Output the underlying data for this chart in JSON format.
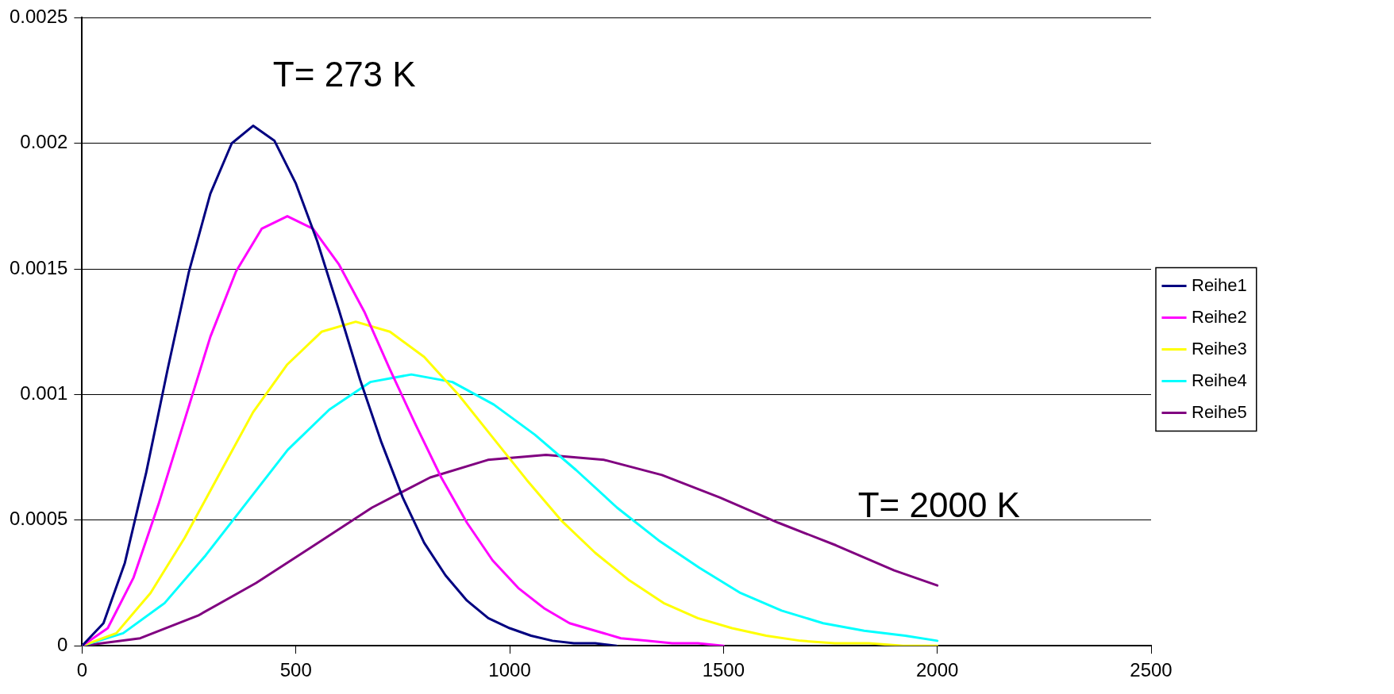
{
  "chart_data": {
    "type": "line",
    "xlim": [
      0,
      2500
    ],
    "xticks": [
      0,
      500,
      1000,
      1500,
      2000,
      2500
    ],
    "ylim": [
      0,
      0.0025
    ],
    "yticks": [
      0,
      0.0005,
      0.001,
      0.0015,
      0.002,
      0.0025
    ],
    "grid": "y",
    "legend": "right",
    "marker": "none",
    "line_style": "solid",
    "annotations": [
      "T= 273 K",
      "T= 2000 K"
    ],
    "series": [
      {
        "name": "Reihe1",
        "color": "#000080",
        "x": [
          0,
          50,
          100,
          150,
          200,
          250,
          300,
          350,
          400,
          450,
          500,
          550,
          600,
          650,
          700,
          750,
          800,
          850,
          900,
          950,
          1000,
          1050,
          1100,
          1150,
          1200,
          1250
        ],
        "values": [
          0,
          9e-05,
          0.00033,
          0.00069,
          0.0011,
          0.00149,
          0.0018,
          0.002,
          0.00207,
          0.00201,
          0.00184,
          0.00161,
          0.00134,
          0.00106,
          0.00081,
          0.00059,
          0.00041,
          0.00028,
          0.00018,
          0.00011,
          7e-05,
          4e-05,
          2e-05,
          1e-05,
          1e-05,
          0
        ]
      },
      {
        "name": "Reihe2",
        "color": "#ff00ff",
        "x": [
          0,
          60,
          120,
          180,
          240,
          300,
          360,
          420,
          480,
          540,
          600,
          660,
          720,
          780,
          840,
          900,
          960,
          1020,
          1080,
          1140,
          1200,
          1260,
          1320,
          1380,
          1440,
          1500
        ],
        "values": [
          0,
          7e-05,
          0.00027,
          0.00057,
          0.0009,
          0.00123,
          0.00149,
          0.00166,
          0.00171,
          0.00166,
          0.00152,
          0.00133,
          0.0011,
          0.00088,
          0.00067,
          0.00049,
          0.00034,
          0.00023,
          0.00015,
          9e-05,
          6e-05,
          3e-05,
          2e-05,
          1e-05,
          1e-05,
          0
        ]
      },
      {
        "name": "Reihe3",
        "color": "#ffff00",
        "x": [
          0,
          80,
          160,
          240,
          320,
          400,
          480,
          560,
          640,
          720,
          800,
          880,
          960,
          1040,
          1120,
          1200,
          1280,
          1360,
          1440,
          1520,
          1600,
          1680,
          1760,
          1840,
          1920,
          2000
        ],
        "values": [
          0,
          5e-05,
          0.00021,
          0.00043,
          0.00068,
          0.00093,
          0.00112,
          0.00125,
          0.00129,
          0.00125,
          0.00115,
          0.001,
          0.00083,
          0.00066,
          0.0005,
          0.00037,
          0.00026,
          0.00017,
          0.00011,
          7e-05,
          4e-05,
          2e-05,
          1e-05,
          1e-05,
          0,
          0
        ]
      },
      {
        "name": "Reihe4",
        "color": "#00ffff",
        "x": [
          0,
          96,
          193,
          289,
          385,
          481,
          578,
          674,
          770,
          866,
          963,
          1059,
          1155,
          1251,
          1348,
          1444,
          1540,
          1636,
          1733,
          1829,
          1925,
          2000
        ],
        "values": [
          0,
          5e-05,
          0.00017,
          0.00036,
          0.00057,
          0.00078,
          0.00094,
          0.00105,
          0.00108,
          0.00105,
          0.00096,
          0.00084,
          0.0007,
          0.00055,
          0.00042,
          0.00031,
          0.00021,
          0.00014,
          9e-05,
          6e-05,
          4e-05,
          2e-05
        ]
      },
      {
        "name": "Reihe5",
        "color": "#800080",
        "x": [
          0,
          136,
          271,
          407,
          543,
          678,
          814,
          949,
          1085,
          1221,
          1356,
          1492,
          1628,
          1763,
          1899,
          2000
        ],
        "values": [
          0,
          3e-05,
          0.00012,
          0.00025,
          0.0004,
          0.00055,
          0.00067,
          0.00074,
          0.00076,
          0.00074,
          0.00068,
          0.00059,
          0.00049,
          0.0004,
          0.0003,
          0.00024
        ]
      }
    ]
  }
}
